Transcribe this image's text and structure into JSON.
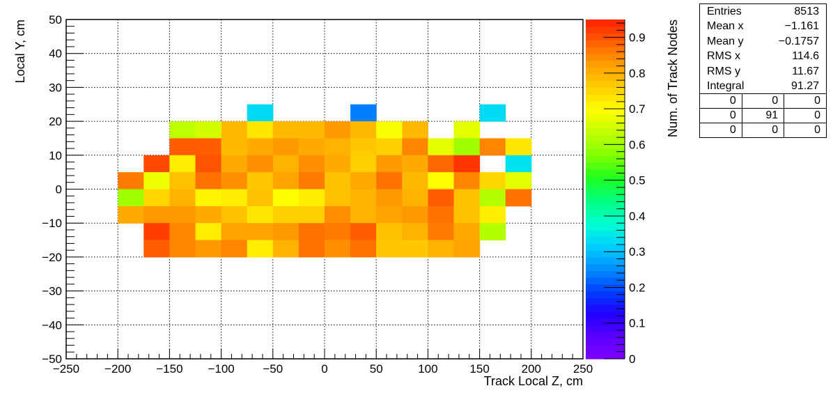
{
  "chart_data": {
    "type": "heatmap",
    "xlabel": "Track Local Z, cm",
    "ylabel": "Local Y, cm",
    "zlabel": "Num. of Track Nodes",
    "xlim": [
      -250,
      250
    ],
    "ylim": [
      -50,
      50
    ],
    "zlim": [
      0,
      0.95
    ],
    "x_ticks": [
      "−250",
      "−200",
      "−150",
      "−100",
      "−50",
      "0",
      "50",
      "100",
      "150",
      "200",
      "250"
    ],
    "y_ticks": [
      "−50",
      "−40",
      "−30",
      "−20",
      "−10",
      "0",
      "10",
      "20",
      "30",
      "40",
      "50"
    ],
    "z_ticks": [
      "0",
      "0.1",
      "0.2",
      "0.3",
      "0.4",
      "0.5",
      "0.6",
      "0.7",
      "0.8",
      "0.9"
    ],
    "x_bin_edges": [
      -200,
      -175,
      -150,
      -125,
      -100,
      -75,
      -50,
      -25,
      0,
      25,
      50,
      75,
      100,
      125,
      150,
      175,
      200
    ],
    "y_bin_edges": [
      -20,
      -15,
      -10,
      -5,
      0,
      5,
      10,
      15,
      20,
      25
    ],
    "z_rows_top_to_bottom": [
      [
        null,
        null,
        null,
        null,
        null,
        0.33,
        null,
        null,
        null,
        0.24,
        null,
        null,
        null,
        null,
        0.33,
        null
      ],
      [
        null,
        null,
        0.63,
        0.65,
        0.79,
        0.73,
        0.79,
        0.79,
        0.83,
        0.79,
        0.69,
        0.79,
        null,
        0.67,
        null,
        null
      ],
      [
        null,
        null,
        0.89,
        0.89,
        0.79,
        0.81,
        0.83,
        0.81,
        0.8,
        0.77,
        0.76,
        0.85,
        0.67,
        0.6,
        0.85,
        0.73
      ],
      [
        null,
        0.91,
        0.72,
        0.9,
        0.81,
        0.84,
        0.8,
        0.84,
        0.81,
        0.76,
        0.83,
        0.81,
        0.88,
        0.93,
        null,
        0.34
      ],
      [
        0.86,
        0.68,
        0.78,
        0.87,
        0.84,
        0.77,
        0.82,
        0.86,
        0.78,
        0.81,
        0.87,
        0.79,
        0.7,
        0.85,
        0.75,
        0.67
      ],
      [
        0.6,
        0.75,
        0.8,
        0.71,
        0.72,
        0.78,
        0.7,
        0.72,
        0.78,
        0.8,
        0.83,
        0.8,
        0.89,
        0.78,
        0.62,
        0.87
      ],
      [
        0.81,
        0.83,
        0.83,
        0.81,
        0.78,
        0.73,
        0.76,
        0.76,
        0.84,
        0.8,
        0.82,
        0.83,
        0.87,
        0.78,
        0.72,
        null
      ],
      [
        null,
        0.92,
        0.85,
        0.72,
        0.82,
        0.82,
        0.83,
        0.87,
        0.86,
        0.89,
        0.78,
        0.8,
        0.86,
        0.81,
        0.62,
        null
      ],
      [
        null,
        0.89,
        0.85,
        0.83,
        0.85,
        0.72,
        0.8,
        0.87,
        0.84,
        0.87,
        0.77,
        0.77,
        0.8,
        0.82,
        null,
        null
      ]
    ],
    "palette": [
      "#7f00ff",
      "#5a00ff",
      "#2000ff",
      "#0040ff",
      "#0090ff",
      "#00d0ff",
      "#00ffd0",
      "#00ff80",
      "#20ff20",
      "#80ff00",
      "#c0ff00",
      "#ffff00",
      "#ffd000",
      "#ffa000",
      "#ff6000",
      "#ff2000"
    ],
    "grid": true
  },
  "stats": {
    "rows": [
      {
        "label": "Entries",
        "value": "8513"
      },
      {
        "label": "Mean x",
        "value": "−1.161"
      },
      {
        "label": "Mean y",
        "value": "−0.1757"
      },
      {
        "label": "RMS x",
        "value": "114.6"
      },
      {
        "label": "RMS y",
        "value": "11.67"
      },
      {
        "label": "Integral",
        "value": "91.27"
      }
    ],
    "grid": [
      [
        "0",
        "0",
        "0"
      ],
      [
        "0",
        "91",
        "0"
      ],
      [
        "0",
        "0",
        "0"
      ]
    ]
  }
}
